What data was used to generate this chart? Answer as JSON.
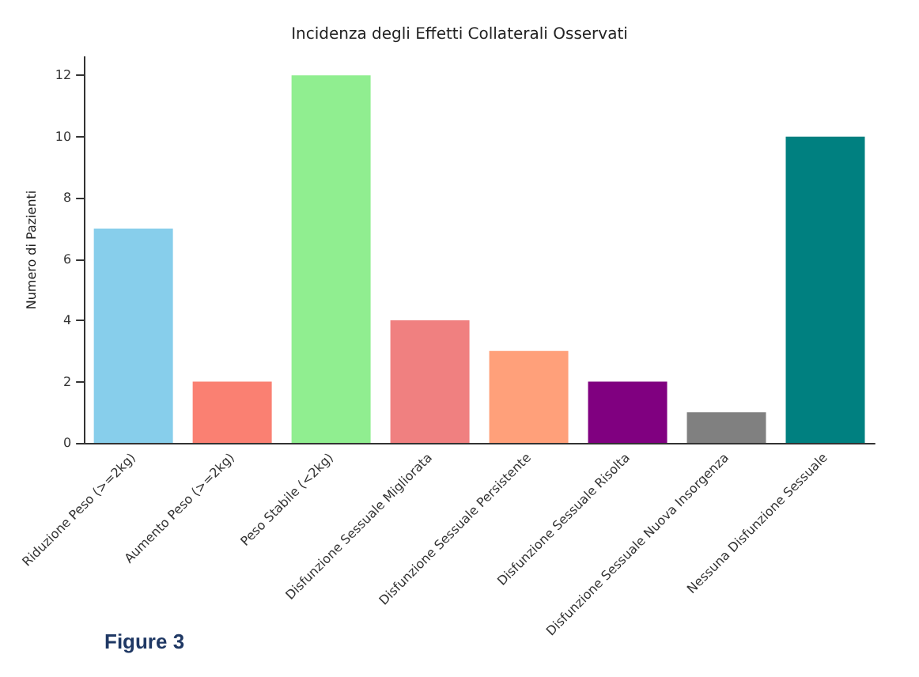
{
  "chart_data": {
    "type": "bar",
    "title": "Incidenza degli Effetti Collaterali Osservati",
    "ylabel": "Numero di Pazienti",
    "categories": [
      "Riduzione Peso (>=2kg)",
      "Aumento Peso (>=2kg)",
      "Peso Stabile (<2kg)",
      "Disfunzione Sessuale Migliorata",
      "Disfunzione Sessuale Persistente",
      "Disfunzione Sessuale Risolta",
      "Disfunzione Sessuale Nuova Insorgenza",
      "Nessuna Disfunzione Sessuale"
    ],
    "values": [
      7,
      2,
      12,
      4,
      3,
      2,
      1,
      10
    ],
    "colors": [
      "#87ceeb",
      "#fa8072",
      "#90ee90",
      "#f08080",
      "#ffa07a",
      "#800080",
      "#808080",
      "#008080"
    ],
    "ylim": [
      0,
      12.6
    ],
    "yticks": [
      0,
      2,
      4,
      6,
      8,
      10,
      12
    ],
    "grid": false,
    "annotations": [
      "Figure 3"
    ]
  }
}
